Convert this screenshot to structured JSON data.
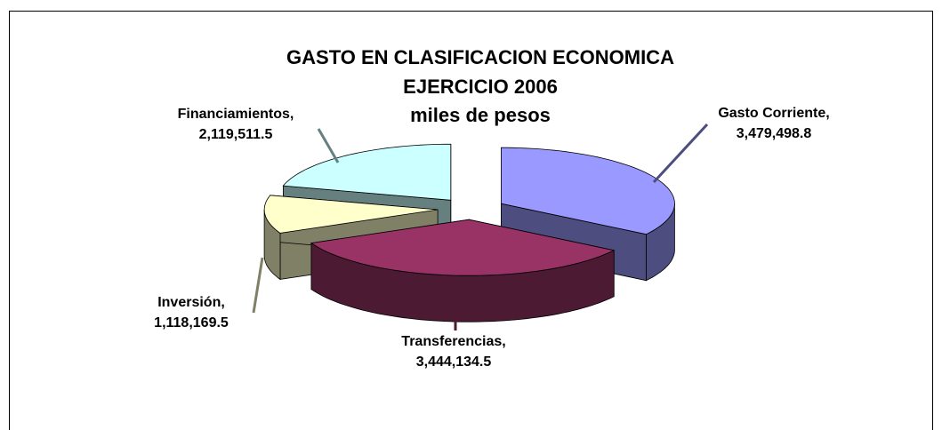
{
  "chart_data": {
    "type": "pie3d",
    "title_lines": [
      "GASTO EN CLASIFICACION ECONOMICA",
      "EJERCICIO 2006",
      "miles de pesos"
    ],
    "categories": [
      "Gasto Corriente,",
      "Transferencias,",
      "Inversión,",
      "Financiamientos,"
    ],
    "values": [
      3479498.8,
      3444134.5,
      1118169.5,
      2119511.5
    ],
    "value_labels": [
      "3,479,498.8",
      "3,444,134.5",
      "1,118,169.5",
      "2,119,511.5"
    ],
    "colors": [
      "#9999ff",
      "#993366",
      "#ffffcc",
      "#ccffff"
    ],
    "side_colors": [
      "#4d4d80",
      "#4d1a33",
      "#808066",
      "#668080"
    ]
  }
}
